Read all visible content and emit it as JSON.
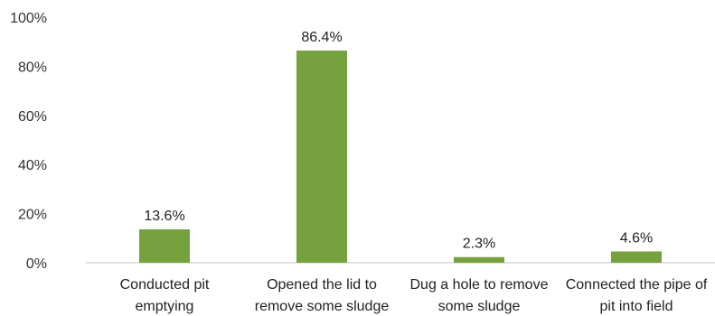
{
  "chart_data": {
    "type": "bar",
    "title": "",
    "xlabel": "",
    "ylabel": "",
    "categories": [
      [
        "Conducted pit",
        "emptying"
      ],
      [
        "Opened the lid to",
        "remove some sludge"
      ],
      [
        "Dug a hole to remove",
        "some sludge"
      ],
      [
        "Connected the pipe of",
        "pit into field"
      ]
    ],
    "values": [
      13.6,
      86.4,
      2.3,
      4.6
    ],
    "data_labels": [
      "13.6%",
      "86.4%",
      "2.3%",
      "4.6%"
    ],
    "ylim": [
      0,
      100
    ],
    "yticks": [
      0,
      20,
      40,
      60,
      80,
      100
    ],
    "ytick_labels": [
      "0%",
      "20%",
      "40%",
      "60%",
      "80%",
      "100%"
    ],
    "grid": false,
    "legend": "none",
    "colors": {
      "bar": "#76a13f",
      "axis": "#d9d9d9",
      "text": "#222222"
    }
  }
}
